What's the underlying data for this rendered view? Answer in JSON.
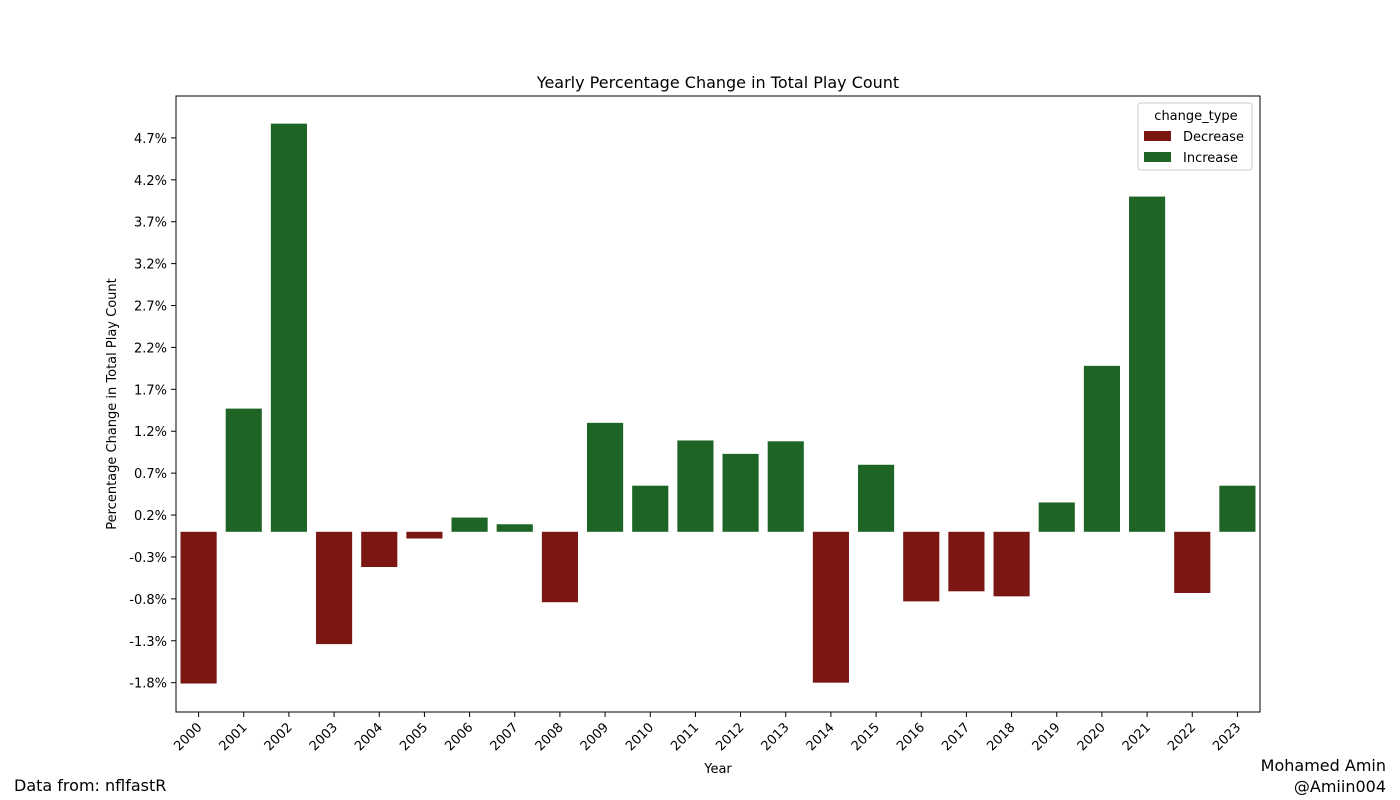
{
  "chart_data": {
    "type": "bar",
    "title": "Yearly Percentage Change in Total Play Count",
    "xlabel": "Year",
    "ylabel": "Percentage Change in Total Play Count",
    "categories": [
      "2000",
      "2001",
      "2002",
      "2003",
      "2004",
      "2005",
      "2006",
      "2007",
      "2008",
      "2009",
      "2010",
      "2011",
      "2012",
      "2013",
      "2014",
      "2015",
      "2016",
      "2017",
      "2018",
      "2019",
      "2020",
      "2021",
      "2022",
      "2023"
    ],
    "values": [
      -1.81,
      1.47,
      4.87,
      -1.34,
      -0.42,
      -0.08,
      0.17,
      0.09,
      -0.84,
      1.3,
      0.55,
      1.09,
      0.93,
      1.08,
      -1.8,
      0.8,
      -0.83,
      -0.71,
      -0.77,
      0.35,
      1.98,
      4.0,
      -0.73,
      0.55
    ],
    "change_type": [
      "Decrease",
      "Increase",
      "Increase",
      "Decrease",
      "Decrease",
      "Decrease",
      "Increase",
      "Increase",
      "Decrease",
      "Increase",
      "Increase",
      "Increase",
      "Increase",
      "Increase",
      "Decrease",
      "Increase",
      "Decrease",
      "Decrease",
      "Decrease",
      "Increase",
      "Increase",
      "Increase",
      "Decrease",
      "Increase"
    ],
    "yticks": [
      -1.8,
      -1.3,
      -0.8,
      -0.3,
      0.2,
      0.7,
      1.2,
      1.7,
      2.2,
      2.7,
      3.2,
      3.7,
      4.2,
      4.7
    ],
    "ytick_labels": [
      "-1.8%",
      "-1.3%",
      "-0.8%",
      "-0.3%",
      "0.2%",
      "0.7%",
      "1.2%",
      "1.7%",
      "2.2%",
      "2.7%",
      "3.2%",
      "3.7%",
      "4.2%",
      "4.7%"
    ],
    "ylim": [
      -2.15,
      5.2
    ],
    "legend": {
      "title": "change_type",
      "placement": "top-right",
      "entries": [
        {
          "label": "Decrease",
          "color": "#7b1712"
        },
        {
          "label": "Increase",
          "color": "#1e6424"
        }
      ]
    },
    "colors": {
      "Decrease": "#7b1712",
      "Increase": "#1e6424"
    },
    "grid": false
  },
  "footer": {
    "source": "Data from: nflfastR",
    "author_name": "Mohamed Amin",
    "author_handle": "@Amiin004"
  }
}
